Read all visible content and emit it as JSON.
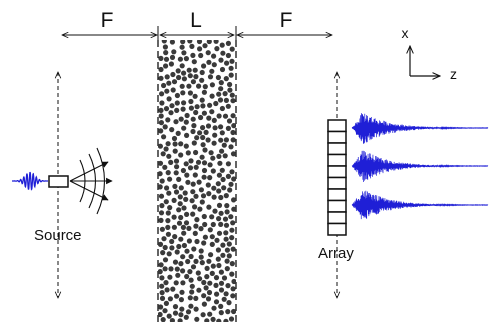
{
  "labels": {
    "focal_left": "F",
    "slab_thickness": "L",
    "focal_right": "F",
    "source": "Source",
    "array": "Array",
    "axis_x": "x",
    "axis_z": "z"
  },
  "colors": {
    "ink": "#111111",
    "signal": "#1f1fd6",
    "scatterer": "#3a3a3a"
  },
  "array": {
    "element_count": 10
  },
  "signals": {
    "trace_count": 3
  }
}
